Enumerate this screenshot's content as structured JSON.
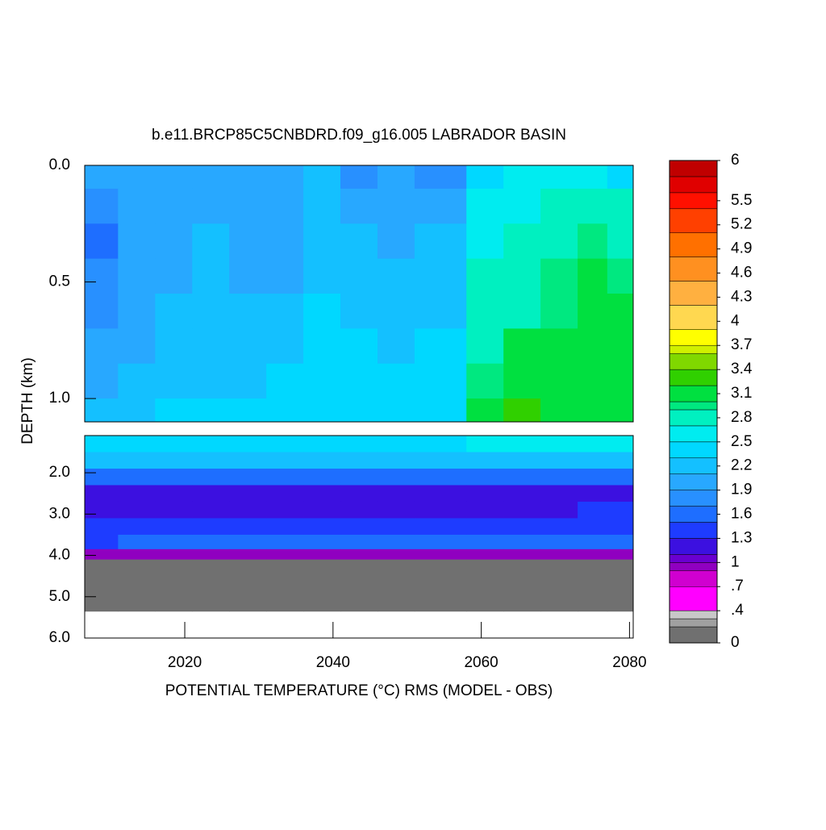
{
  "chart_data": {
    "type": "contour",
    "title": "b.e11.BRCP85C5CNBDRD.f09_g16.005 LABRADOR BASIN",
    "xlabel": "POTENTIAL TEMPERATURE (°C) RMS (MODEL - OBS)",
    "ylabel": "DEPTH (km)",
    "xlim": [
      2006.5,
      2080.5
    ],
    "xticks": [
      2020,
      2040,
      2060,
      2080
    ],
    "panels": [
      {
        "ylim": [
          1.1,
          0
        ],
        "yticks": [
          {
            "value": 0,
            "label": "0.0"
          },
          0.5,
          {
            "value": 1,
            "label": "1.0"
          }
        ]
      },
      {
        "ylim": [
          6,
          1.1
        ],
        "yticks": [
          {
            "value": 2,
            "label": "2.0"
          },
          {
            "value": 3,
            "label": "3.0"
          },
          {
            "value": 4,
            "label": "4.0"
          },
          {
            "value": 5,
            "label": "5.0"
          },
          {
            "value": 6,
            "label": "6.0"
          }
        ]
      }
    ],
    "x_edges": [
      2006.5,
      2011,
      2016,
      2021,
      2026,
      2031,
      2036,
      2041,
      2046,
      2051,
      2058,
      2063,
      2068,
      2073,
      2077,
      2080.5
    ],
    "depth_edges": [
      0,
      0.1,
      0.25,
      0.4,
      0.55,
      0.7,
      0.85,
      1.0,
      1.1,
      1.5,
      1.9,
      2.3,
      2.7,
      3.1,
      3.5,
      3.85,
      4.1,
      5.35
    ],
    "values": [
      [
        1.9,
        1.9,
        2.0,
        2.0,
        2.0,
        1.9,
        2.1,
        1.8,
        2.0,
        1.8,
        2.3,
        2.5,
        2.6,
        2.6,
        2.3
      ],
      [
        1.8,
        1.9,
        1.9,
        2.0,
        2.0,
        1.9,
        2.1,
        2.0,
        1.9,
        2.0,
        2.5,
        2.6,
        2.7,
        2.7,
        2.8
      ],
      [
        1.6,
        1.9,
        1.9,
        2.1,
        2.0,
        2.0,
        2.2,
        2.1,
        2.0,
        2.1,
        2.6,
        2.8,
        2.8,
        2.9,
        2.8
      ],
      [
        1.7,
        1.9,
        2.0,
        2.1,
        2.0,
        2.0,
        2.2,
        2.2,
        2.1,
        2.2,
        2.7,
        2.8,
        2.9,
        3.0,
        2.9
      ],
      [
        1.8,
        1.9,
        2.1,
        2.2,
        2.1,
        2.1,
        2.3,
        2.2,
        2.1,
        2.2,
        2.7,
        2.8,
        2.9,
        3.0,
        3.0
      ],
      [
        1.9,
        2.0,
        2.2,
        2.2,
        2.2,
        2.2,
        2.3,
        2.4,
        2.2,
        2.3,
        2.8,
        3.0,
        3.0,
        3.0,
        3.0
      ],
      [
        2.0,
        2.1,
        2.2,
        2.2,
        2.2,
        2.3,
        2.3,
        2.4,
        2.3,
        2.4,
        2.9,
        3.1,
        3.0,
        3.1,
        3.1
      ],
      [
        2.1,
        2.2,
        2.3,
        2.3,
        2.3,
        2.3,
        2.4,
        2.4,
        2.4,
        2.4,
        3.0,
        3.2,
        3.1,
        3.1,
        3.1
      ],
      [
        2.4,
        2.4,
        2.4,
        2.4,
        2.4,
        2.4,
        2.4,
        2.4,
        2.4,
        2.4,
        2.5,
        2.5,
        2.6,
        2.6,
        2.6
      ],
      [
        2.1,
        2.1,
        2.1,
        2.1,
        2.2,
        2.1,
        2.1,
        2.1,
        2.1,
        2.1,
        2.1,
        2.1,
        2.1,
        2.1,
        2.2
      ],
      [
        1.6,
        1.6,
        1.6,
        1.6,
        1.6,
        1.6,
        1.6,
        1.6,
        1.6,
        1.6,
        1.6,
        1.6,
        1.6,
        1.6,
        1.6
      ],
      [
        1.1,
        1.2,
        1.2,
        1.2,
        1.2,
        1.2,
        1.1,
        1.2,
        1.2,
        1.2,
        1.2,
        1.2,
        1.2,
        1.2,
        1.2
      ],
      [
        1.2,
        1.2,
        1.2,
        1.2,
        1.2,
        1.2,
        1.2,
        1.2,
        1.2,
        1.2,
        1.2,
        1.2,
        1.2,
        1.3,
        1.3
      ],
      [
        1.3,
        1.3,
        1.4,
        1.4,
        1.4,
        1.4,
        1.4,
        1.4,
        1.4,
        1.4,
        1.4,
        1.4,
        1.4,
        1.4,
        1.4
      ],
      [
        1.4,
        1.5,
        1.5,
        1.5,
        1.5,
        1.5,
        1.6,
        1.6,
        1.6,
        1.6,
        1.6,
        1.5,
        1.5,
        1.5,
        1.5
      ],
      [
        0.9,
        0.9,
        0.9,
        0.9,
        0.9,
        0.9,
        0.9,
        0.9,
        0.9,
        0.9,
        0.9,
        0.9,
        0.9,
        0.9,
        0.9
      ],
      [
        0,
        0,
        0,
        0,
        0,
        0,
        0,
        0,
        0,
        0,
        0,
        0,
        0,
        0,
        0
      ]
    ],
    "colorbar_lim": [
      0,
      6
    ],
    "colorbar_ticks": [
      0,
      {
        "value": 0.4,
        "label": ".4"
      },
      {
        "value": 0.7,
        "label": ".7"
      },
      1,
      1.3,
      1.6,
      1.9,
      2.2,
      2.5,
      2.8,
      3.1,
      3.4,
      3.7,
      4,
      4.3,
      4.6,
      4.9,
      5.2,
      5.5,
      6
    ],
    "colormap": [
      {
        "value": 0,
        "color": "#707070"
      },
      {
        "value": 0.2,
        "color": "#a0a0a0"
      },
      {
        "value": 0.3,
        "color": "#c8c8c8"
      },
      {
        "value": 0.4,
        "color": "#ff00ff"
      },
      {
        "value": 0.7,
        "color": "#d000d0"
      },
      {
        "value": 0.9,
        "color": "#9000c0"
      },
      {
        "value": 1.0,
        "color": "#6a00d0"
      },
      {
        "value": 1.1,
        "color": "#3c10e0"
      },
      {
        "value": 1.3,
        "color": "#1e3cff"
      },
      {
        "value": 1.5,
        "color": "#1e6eff"
      },
      {
        "value": 1.7,
        "color": "#2890ff"
      },
      {
        "value": 1.9,
        "color": "#28a8ff"
      },
      {
        "value": 2.1,
        "color": "#14c0ff"
      },
      {
        "value": 2.3,
        "color": "#00d8ff"
      },
      {
        "value": 2.5,
        "color": "#00ecf0"
      },
      {
        "value": 2.7,
        "color": "#00f0c0"
      },
      {
        "value": 2.9,
        "color": "#00e880"
      },
      {
        "value": 3.0,
        "color": "#00e040"
      },
      {
        "value": 3.2,
        "color": "#30d000"
      },
      {
        "value": 3.4,
        "color": "#80d800"
      },
      {
        "value": 3.6,
        "color": "#d0f000"
      },
      {
        "value": 3.7,
        "color": "#ffff00"
      },
      {
        "value": 3.9,
        "color": "#ffd850"
      },
      {
        "value": 4.2,
        "color": "#ffb040"
      },
      {
        "value": 4.5,
        "color": "#ff9020"
      },
      {
        "value": 4.8,
        "color": "#ff7000"
      },
      {
        "value": 5.1,
        "color": "#ff4000"
      },
      {
        "value": 5.4,
        "color": "#ff1000"
      },
      {
        "value": 5.6,
        "color": "#e00000"
      },
      {
        "value": 5.8,
        "color": "#c00000"
      }
    ]
  }
}
